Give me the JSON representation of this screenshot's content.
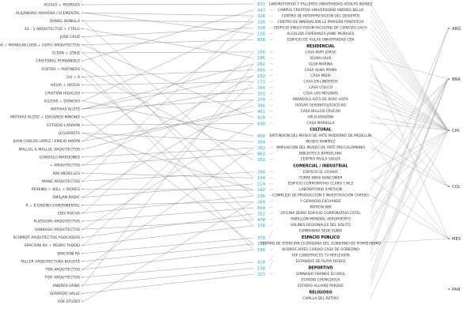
{
  "architects": [
    "AGUILÓ + PEDRAZA",
    "ALEJANDRO ARAVENA / ELEMENTAL",
    "DANIEL BONILLA",
    "S1 - 1 ARQUITECTOS + CTRLG",
    "JOSÉ CRUZ",
    "EDUARDO DE ALMEIDA + MONOLIN LOEB + GOTO ARQUITECTOS",
    "ELTON + LÉNIZ",
    "CRISTÓBAL FERNÁNDEZ",
    "FOSTER + PARTNERS",
    "GH + A",
    "HEVIA + URZÚA",
    "CRISTIÁN HIDALGO",
    "IGLESIS + DONOSO",
    "MATHIAS KLOTZ",
    "MATHIAS KLOTZ + EDGARDO MINOND",
    "ESTUDIO LARRAÍN",
    "LEGORRETA",
    "JUAN CARLOS LÓPEZ / EMILIO MARÍN",
    "MALLOL & MALLOL ARQUITECTOS",
    "GONZALO MARDONES",
    "+ ARQUITECTOS",
    "KIKI MERELLES",
    "MANE ARQUITECTOS",
    "PERKINS + WILL + RIORES",
    "SMILJAN RADIC",
    "R + B DISEÑO EXPERIMENTAL",
    "EDO ROCHA",
    "RUZSOURI ARQUITECTOS",
    "SABBAGH ARQUITECTOS",
    "SCHMIDT ARQUITECTOS ASOCIADOS",
    "SPACIONI RA + PEDRO TADDEI",
    "SPACIONI RA",
    "TALLER ARQUITECTURA BOGOTÁ",
    "TEN ARQUITECTOS",
    "TIDY ARQUITECTOS",
    "ANDRÉS URIBE",
    "GERARDO VALLE",
    "VOX STUDIO"
  ],
  "codes": [
    "872",
    "443",
    "328",
    "336",
    "334",
    "156",
    "858",
    "166",
    "186",
    "292",
    "894",
    "182",
    "173",
    "294",
    "305",
    "274",
    "386",
    "481",
    "828",
    "838",
    "868",
    "364",
    "262",
    "862",
    "353",
    "286",
    "194",
    "214",
    "142",
    "236",
    "269",
    "834",
    "352",
    "478",
    "378",
    "379",
    "379",
    "186",
    "418",
    "158",
    "223"
  ],
  "categories": [
    {
      "label": "",
      "projects": [
        "LABORATORIOS Y TALLERES UNIVERSIDAD ADOLFO IBÁÑEZ",
        "CAMPUS CREATIVO UNIVERSIDAD ANDRÉS BELLO",
        "CENTRO DE INTERPRETACIÓN DEL DESIERTO",
        "CENTRO DE INNOVACIÓN LE PARISIEN PONTIFICIA",
        "EDIFICIO EMILIO PUGIN FACULTAD DE CIENCIAS UACH",
        "ALCALDÍA ESPERANZA JAIME MORALES",
        "EDIFICIO DE AULAS UNIVERSIDAD CEN"
      ]
    },
    {
      "label": "RESIDENCIAL",
      "projects": [
        "CASA PARY JORGE",
        "SOOM HAUS",
        "CLUB MARINA",
        "CASA ALMA PRIMA",
        "CASA MEJÍA",
        "CASA EN LINDEROS",
        "CASA COLICO",
        "CASA LOS MOLINOS",
        "MIRADOLS ALTO DE BOYA VISTA",
        "HOGAR GERONTOLÓGICO KO",
        "CASA BULLOS CRUCAR",
        "APLIS KRAKOW",
        "CASA MARIELLA"
      ]
    },
    {
      "label": "CULTURAL",
      "projects": [
        "EXTENSIÓN DEL MUSEO DE ARTE MODERNO DE MEDELLÍN",
        "MUSEO RAMÍREZ",
        "AMPLIACIÓN DEL MUSEO DE ARTE PRECOLOMBINO",
        "BIBLIOTECA BARSELANA",
        "CENTRO PAULA SOUZA"
      ]
    },
    {
      "label": "COMERCIAL / INDUSTRIAL",
      "projects": [
        "EDIFICIO EL COIHUE",
        "TORRE BBVA BANCOMER",
        "EDIFICIO CORPORATIVO CLARO CHILE",
        "LABORATORIO SYNTHON",
        "COMPLEJO DE PRODUCCIÓN E INVESTIGACIÓN CARSSO",
        "Y GERARDO EXCHANGE",
        "PATRON 888",
        "OFICINA DEMO EDIFICIO CORPORATIVO EXTEL",
        "PABELLÓN MUNDIAL AEROPUERTO",
        "SALINES REGIONALES DEL SOLITO",
        "COMPANHIA SEDE SUBIX"
      ]
    },
    {
      "label": "ESPACIO PÚBLICO",
      "projects": [
        "CENTRO DE ATENCIÓN CIUDADANA DEL GOBIERNO DE PONTEVEDRO",
        "BUENOS AIRES CIUDAD CASA DE GOBIERNO",
        "YAP CONSTRUCTO TU REFLEXIÓN",
        "ESTANQUE DE PLAYA DOSEO"
      ]
    },
    {
      "label": "DEPORTIVO",
      "projects": [
        "GIMNASIO GRANDE SCHOOL",
        "ESTADIO CHENGDOUX",
        "ESTADIO ALLIANZ PARQUE"
      ]
    },
    {
      "label": "RELIGIOSO",
      "projects": [
        "CAPILLA DEL RETIRO"
      ]
    }
  ],
  "countries": [
    "ARG",
    "BRA",
    "CHI",
    "COL",
    "MEX",
    "PAN"
  ]
}
